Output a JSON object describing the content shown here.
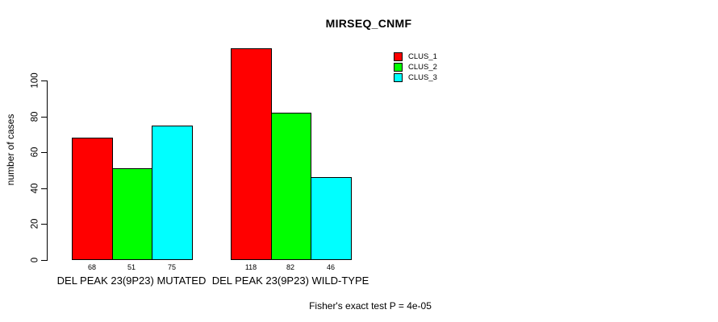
{
  "chart_data": {
    "type": "bar",
    "title": "MIRSEQ_CNMF",
    "ylabel": "number of cases",
    "xlabel": "",
    "categories": [
      "DEL PEAK 23(9P23) MUTATED",
      "DEL PEAK 23(9P23) WILD-TYPE"
    ],
    "series": [
      {
        "name": "CLUS_1",
        "color": "#FF0000",
        "values": [
          68,
          118
        ]
      },
      {
        "name": "CLUS_2",
        "color": "#00FF00",
        "values": [
          51,
          82
        ]
      },
      {
        "name": "CLUS_3",
        "color": "#00FFFF",
        "values": [
          75,
          46
        ]
      }
    ],
    "yticks": [
      0,
      20,
      40,
      60,
      80,
      100
    ],
    "ylim": [
      0,
      118
    ],
    "grid": false,
    "bar_value_labels": true,
    "legend_position": "top-right",
    "annotation": "Fisher's exact test P = 4e-05",
    "axis_color": "#000000",
    "background_color": "#FFFFFF"
  }
}
